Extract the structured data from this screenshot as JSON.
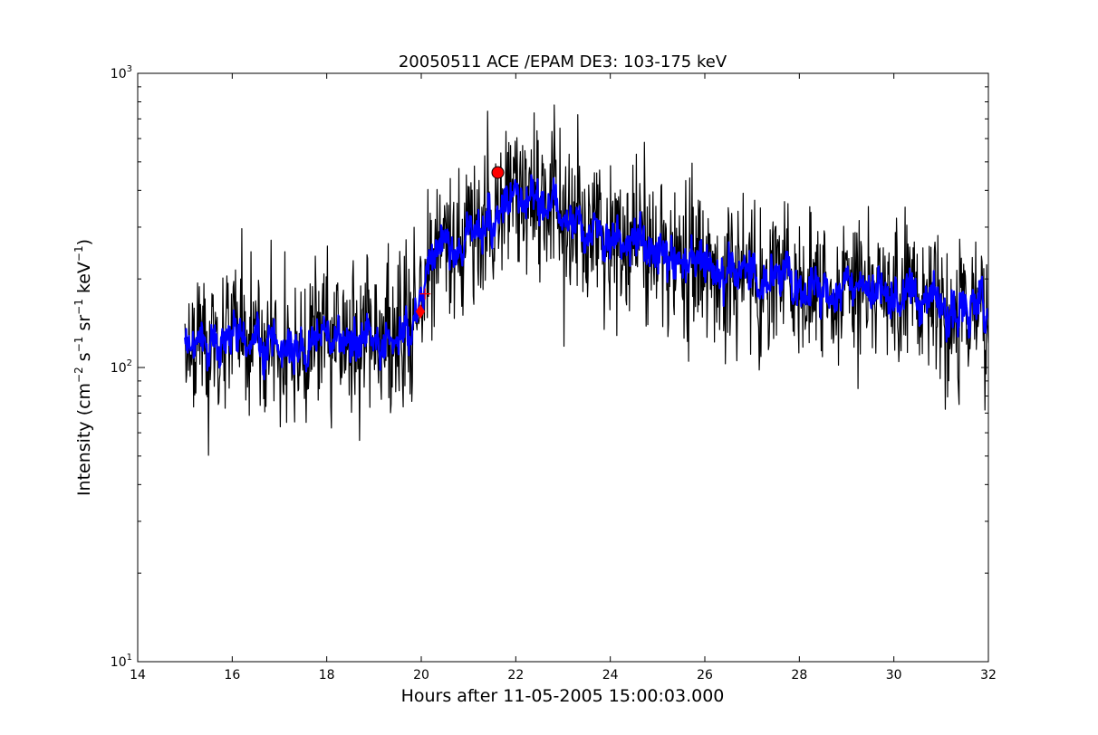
{
  "chart_data": {
    "type": "line",
    "title": "20050511 ACE /EPAM DE3: 103-175 keV",
    "xlabel": "Hours after 11-05-2005 15:00:03.000",
    "ylabel_parts": {
      "prefix": "Intensity (cm",
      "cm_exp": "−2",
      "s": " s",
      "s_exp": "−1",
      "sr": " sr",
      "sr_exp": "−1",
      "kev": " keV",
      "kev_exp": "−1",
      "suffix": ")"
    },
    "xlim": [
      14,
      32
    ],
    "ylim": [
      10,
      1000
    ],
    "yscale": "log",
    "xticks": [
      14,
      16,
      18,
      20,
      22,
      24,
      26,
      28,
      30,
      32
    ],
    "yticks": [
      {
        "value": 10,
        "base": "10",
        "exp": "1"
      },
      {
        "value": 100,
        "base": "10",
        "exp": "2"
      },
      {
        "value": 1000,
        "base": "10",
        "exp": "3"
      }
    ],
    "x_start": 15.0,
    "x_end": 32.0,
    "n_points": 1400,
    "profile": [
      {
        "x": 15.0,
        "y": 125
      },
      {
        "x": 17.0,
        "y": 122
      },
      {
        "x": 19.0,
        "y": 120
      },
      {
        "x": 19.8,
        "y": 125
      },
      {
        "x": 20.0,
        "y": 165
      },
      {
        "x": 20.15,
        "y": 235
      },
      {
        "x": 20.5,
        "y": 260
      },
      {
        "x": 21.0,
        "y": 275
      },
      {
        "x": 21.4,
        "y": 300
      },
      {
        "x": 21.8,
        "y": 355
      },
      {
        "x": 22.3,
        "y": 380
      },
      {
        "x": 23.0,
        "y": 320
      },
      {
        "x": 24.0,
        "y": 285
      },
      {
        "x": 25.0,
        "y": 250
      },
      {
        "x": 26.0,
        "y": 225
      },
      {
        "x": 28.0,
        "y": 195
      },
      {
        "x": 30.0,
        "y": 175
      },
      {
        "x": 32.0,
        "y": 160
      }
    ],
    "series": [
      {
        "kind": "raw",
        "color": "#000000",
        "noise": 0.13
      },
      {
        "kind": "smoothed",
        "color": "#0000ff",
        "noise": 0.06
      }
    ],
    "markers": [
      {
        "shape": "circle",
        "x": 21.62,
        "y": 460,
        "color": "#ff0000"
      },
      {
        "shape": "diamond",
        "x": 19.98,
        "y": 155,
        "color": "#ff0000"
      },
      {
        "shape": "plus",
        "x": 20.08,
        "y": 178,
        "color": "#ff0000"
      }
    ],
    "grid": false,
    "legend": "none"
  }
}
